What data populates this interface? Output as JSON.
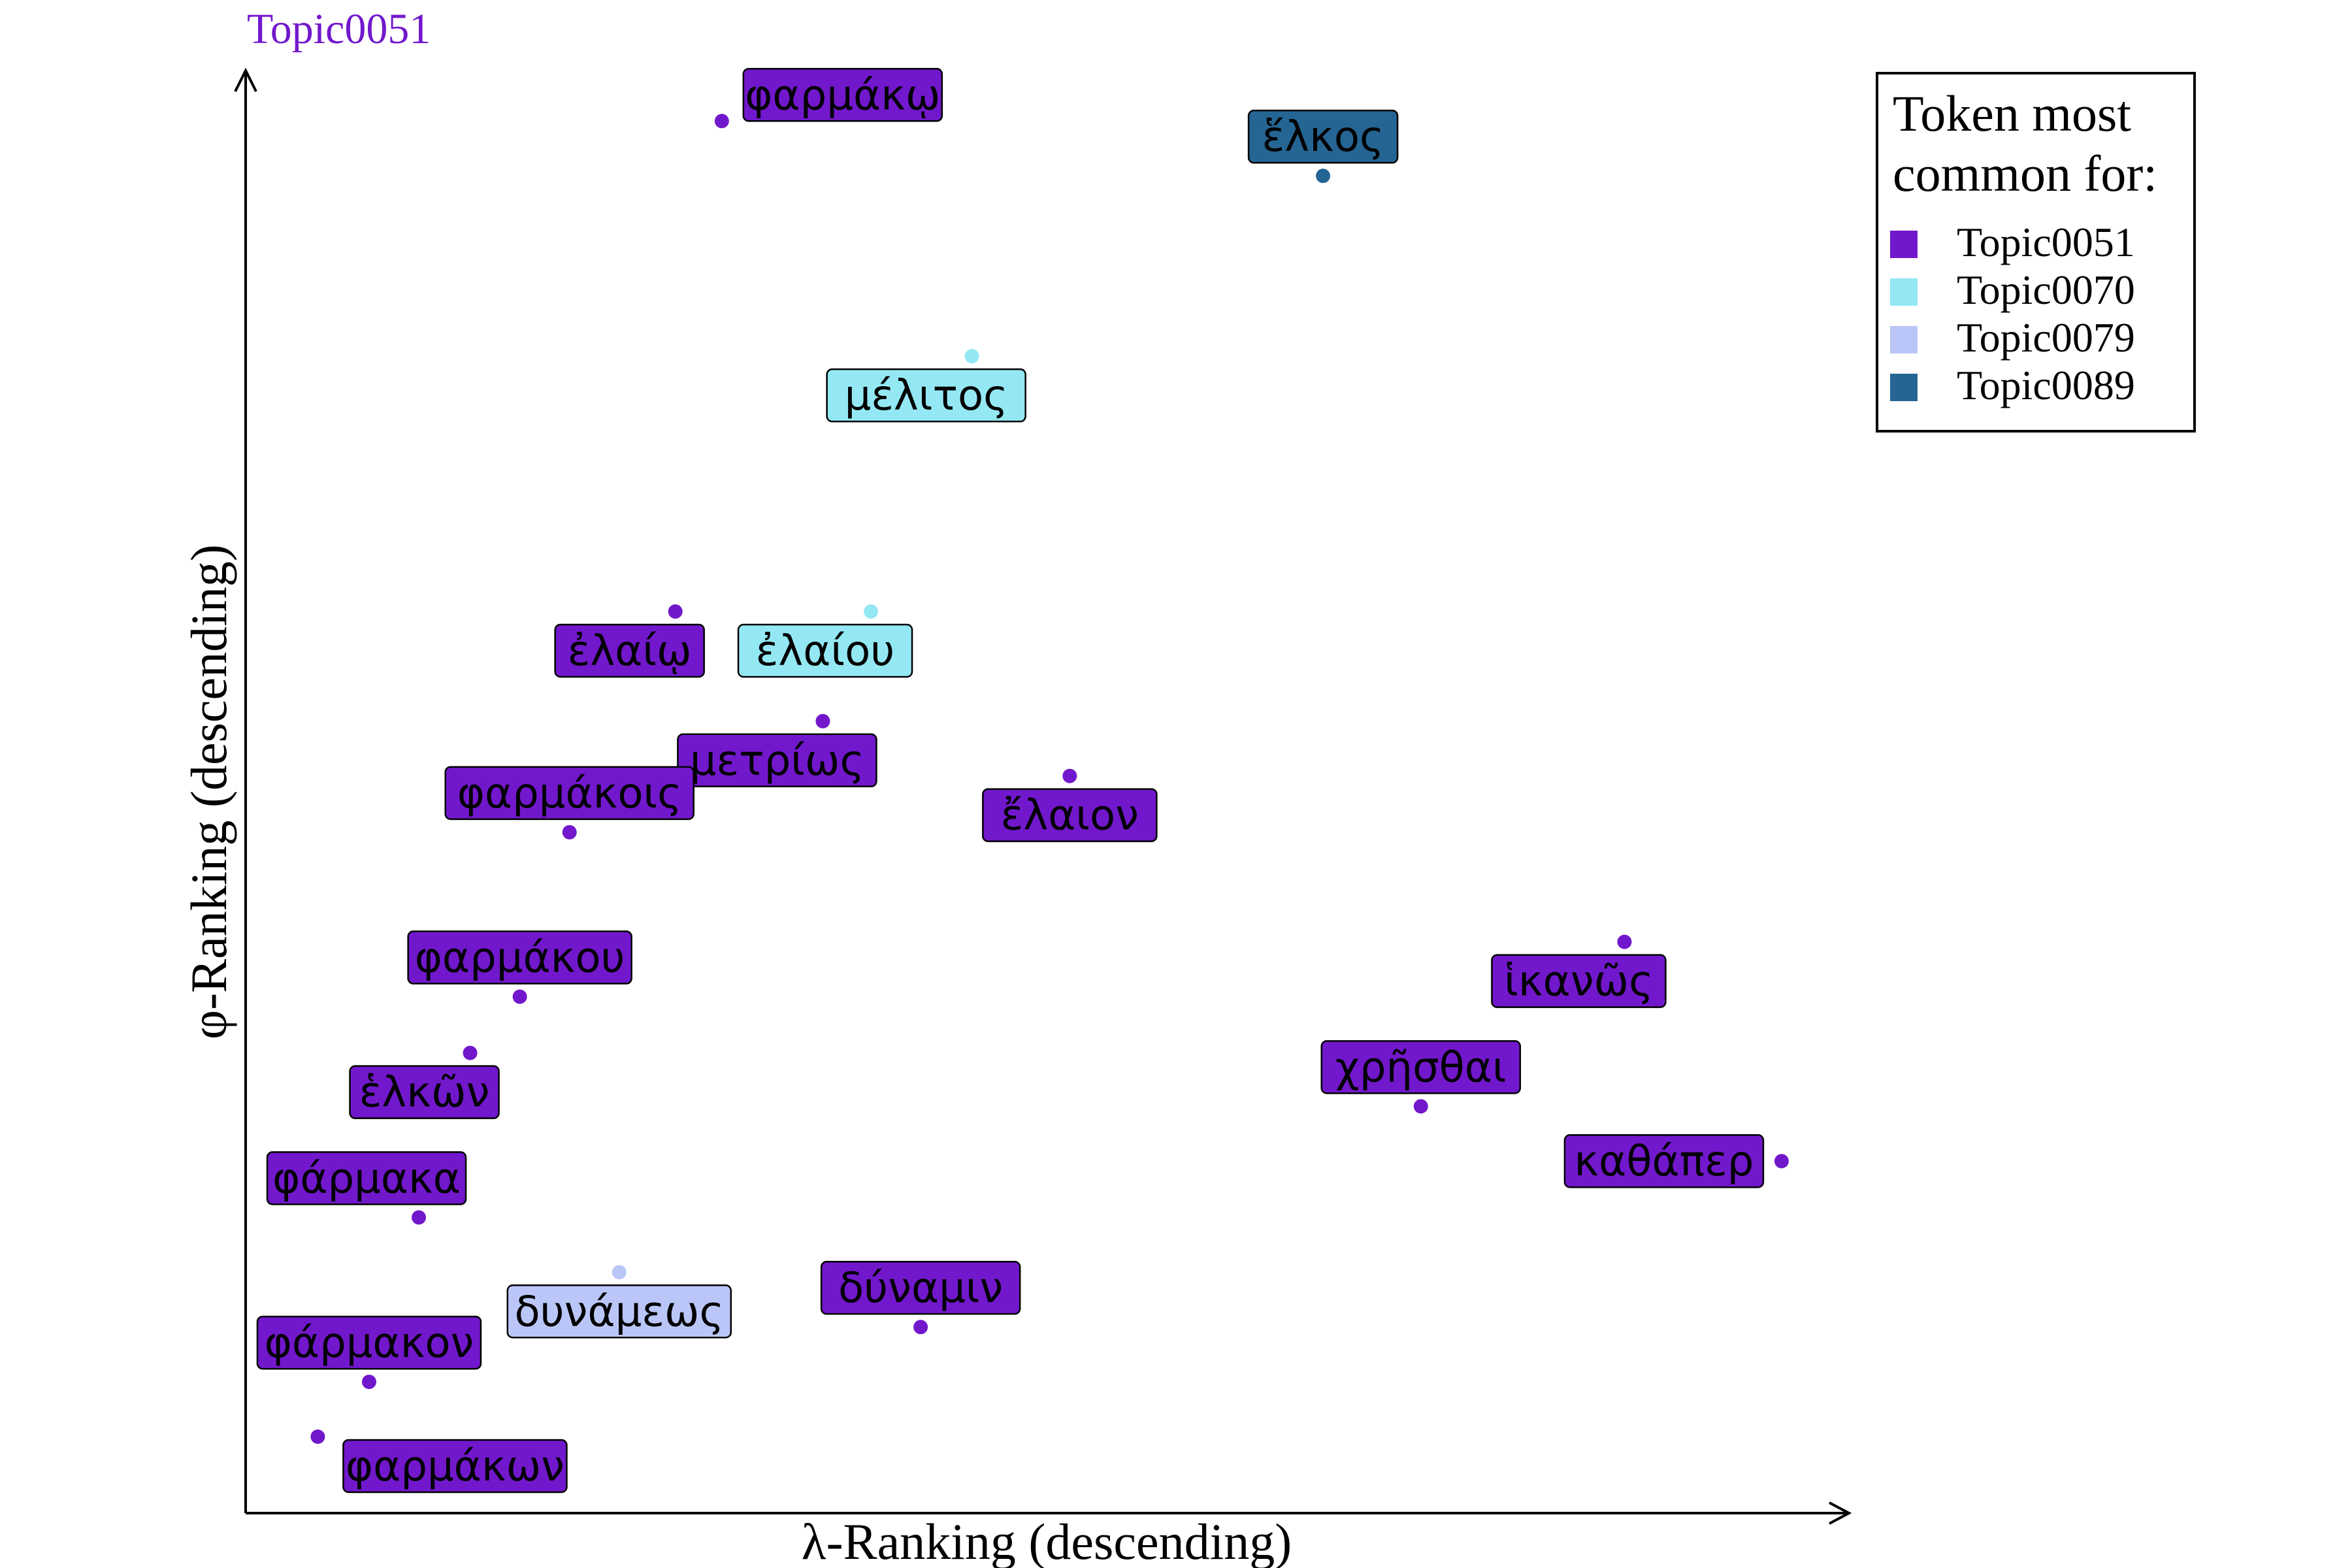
{
  "chart_data": {
    "type": "scatter",
    "title": "Topic0051",
    "title_color": "#7218CC",
    "xlabel": "λ-Ranking (descending)",
    "ylabel": "φ-Ranking (descending)",
    "xlim": [
      0,
      100
    ],
    "ylim": [
      0,
      100
    ],
    "grid": false,
    "legend": {
      "placement": "top-right",
      "title_lines": [
        "Token most",
        "common for:"
      ],
      "entries": [
        {
          "name": "Topic0051",
          "color": "#7218CC"
        },
        {
          "name": "Topic0070",
          "color": "#94E8F4"
        },
        {
          "name": "Topic0079",
          "color": "#BAC6F7"
        },
        {
          "name": "Topic0089",
          "color": "#256594"
        }
      ]
    },
    "points": [
      {
        "label": "φαρμάκῳ",
        "x": 29.7,
        "y": 96.5,
        "topic": "Topic0051",
        "label_pos": "above-right"
      },
      {
        "label": "ἕλκος",
        "x": 67.2,
        "y": 92.7,
        "topic": "Topic0089",
        "label_pos": "above"
      },
      {
        "label": "μέλιτος",
        "x": 45.3,
        "y": 80.2,
        "topic": "Topic0070",
        "label_pos": "below-left"
      },
      {
        "label": "ἐλαίῳ",
        "x": 26.8,
        "y": 62.5,
        "topic": "Topic0051",
        "label_pos": "below-left"
      },
      {
        "label": "ἐλαίου",
        "x": 39.0,
        "y": 62.5,
        "topic": "Topic0070",
        "label_pos": "below-left"
      },
      {
        "label": "μετρίως",
        "x": 36.0,
        "y": 54.9,
        "topic": "Topic0051",
        "label_pos": "below-left"
      },
      {
        "label": "ἔλαιον",
        "x": 51.4,
        "y": 51.1,
        "topic": "Topic0051",
        "label_pos": "below"
      },
      {
        "label": "φαρμάκοις",
        "x": 20.2,
        "y": 47.2,
        "topic": "Topic0051",
        "label_pos": "above"
      },
      {
        "label": "φαρμάκου",
        "x": 17.1,
        "y": 35.8,
        "topic": "Topic0051",
        "label_pos": "above"
      },
      {
        "label": "ἱκανῶς",
        "x": 86.0,
        "y": 39.6,
        "topic": "Topic0051",
        "label_pos": "below-left"
      },
      {
        "label": "χρῆσθαι",
        "x": 73.3,
        "y": 28.2,
        "topic": "Topic0051",
        "label_pos": "above"
      },
      {
        "label": "ἑλκῶν",
        "x": 14.0,
        "y": 31.9,
        "topic": "Topic0051",
        "label_pos": "below-left"
      },
      {
        "label": "καθάπερ",
        "x": 95.8,
        "y": 24.4,
        "topic": "Topic0051",
        "label_pos": "left"
      },
      {
        "label": "φάρμακα",
        "x": 10.8,
        "y": 20.5,
        "topic": "Topic0051",
        "label_pos": "above-left"
      },
      {
        "label": "δυνάμεως",
        "x": 23.3,
        "y": 16.7,
        "topic": "Topic0079",
        "label_pos": "below"
      },
      {
        "label": "δύναμιν",
        "x": 42.1,
        "y": 12.9,
        "topic": "Topic0051",
        "label_pos": "above"
      },
      {
        "label": "φάρμακον",
        "x": 7.7,
        "y": 9.1,
        "topic": "Topic0051",
        "label_pos": "above"
      },
      {
        "label": "φαρμάκων",
        "x": 4.5,
        "y": 5.3,
        "topic": "Topic0051",
        "label_pos": "below-right"
      }
    ]
  }
}
